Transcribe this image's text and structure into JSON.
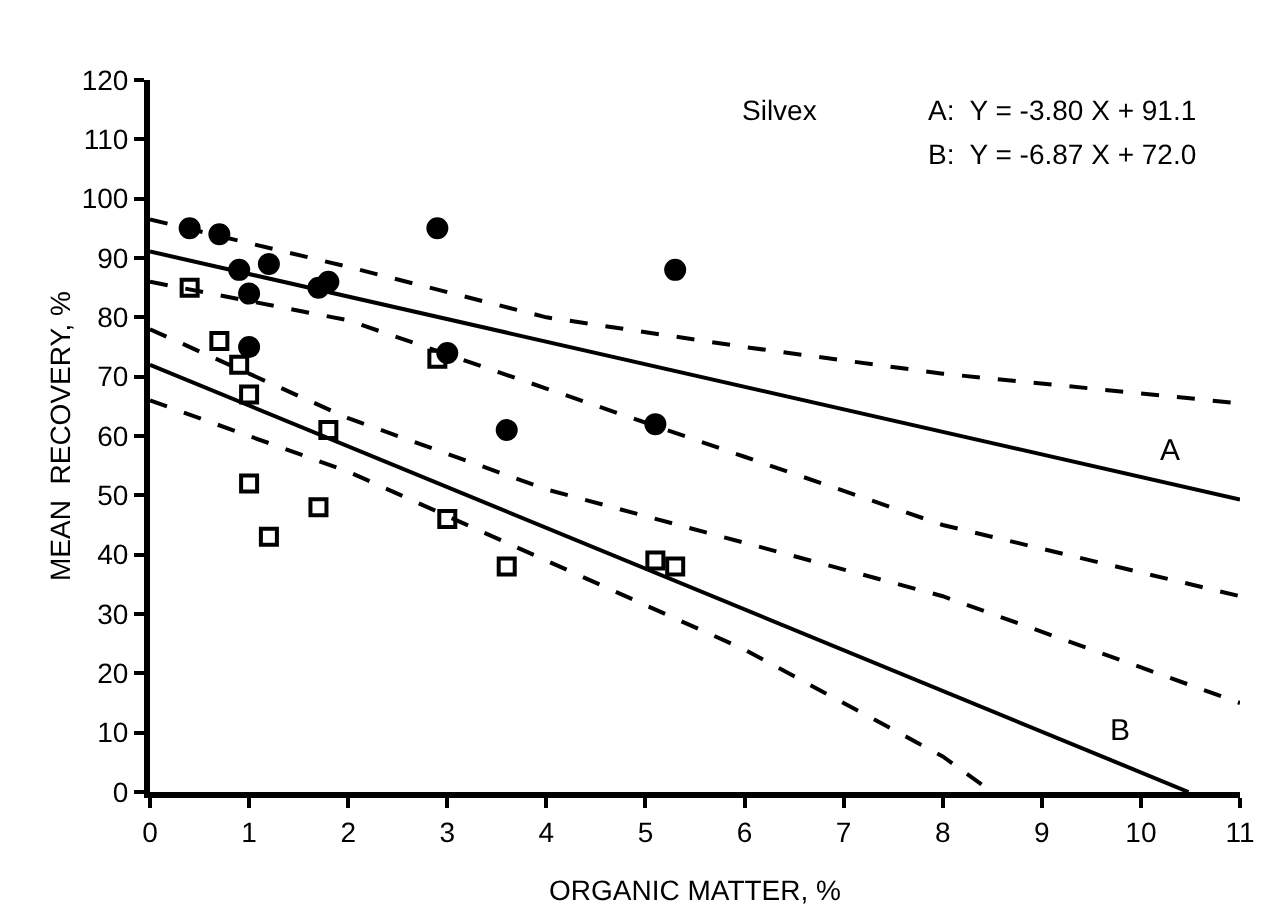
{
  "chart_data": {
    "type": "scatter",
    "xlabel": "ORGANIC MATTER, %",
    "ylabel": "MEAN  RECOVERY, %",
    "xlim": [
      0,
      11
    ],
    "xticks": [
      0,
      1,
      2,
      3,
      4,
      5,
      6,
      7,
      8,
      9,
      10,
      11
    ],
    "ylim": [
      0,
      120
    ],
    "yticks": [
      0,
      10,
      20,
      30,
      40,
      50,
      60,
      70,
      80,
      90,
      100,
      110,
      120
    ],
    "grid": false,
    "annotations": [
      "Silvex",
      "A:  Y = -3.80 X + 91.1",
      "B:  Y = -6.87 X + 72.0"
    ],
    "series": [
      {
        "marker": "circle",
        "color": "#000000",
        "x": [
          0.4,
          0.7,
          0.9,
          1.2,
          1.0,
          1.7,
          1.8,
          1.0,
          2.9,
          3.0,
          3.6,
          5.1,
          5.3
        ],
        "values": [
          95,
          94,
          88,
          89,
          84,
          85,
          86,
          75,
          95,
          74,
          61,
          62,
          88
        ]
      },
      {
        "marker": "square",
        "color": "#000000",
        "x": [
          0.4,
          0.7,
          0.9,
          1.0,
          1.0,
          1.2,
          1.7,
          1.8,
          2.9,
          3.0,
          3.6,
          5.1,
          5.3
        ],
        "values": [
          85,
          76,
          72,
          67,
          52,
          43,
          48,
          61,
          73,
          46,
          38,
          39,
          38
        ]
      },
      {
        "type": "line",
        "name": "A",
        "marker": "none",
        "line_style": "solid",
        "color": "#000000",
        "x": [
          0,
          11
        ],
        "values": [
          91.1,
          49.3
        ]
      },
      {
        "type": "line",
        "name": "B",
        "marker": "none",
        "line_style": "solid",
        "color": "#000000",
        "x": [
          0,
          10.48
        ],
        "values": [
          72,
          0
        ]
      },
      {
        "type": "line",
        "marker": "none",
        "line_style": "dashed",
        "color": "#000000",
        "x": [
          0,
          2,
          4,
          6,
          8,
          11
        ],
        "values": [
          96.5,
          88.5,
          80,
          75,
          70.5,
          65.5
        ]
      },
      {
        "type": "line",
        "marker": "none",
        "line_style": "dashed",
        "color": "#000000",
        "x": [
          0,
          2,
          4,
          6,
          8,
          11
        ],
        "values": [
          86,
          79.5,
          68,
          56.5,
          45,
          33
        ]
      },
      {
        "type": "line",
        "marker": "none",
        "line_style": "dashed",
        "color": "#000000",
        "x": [
          0,
          2,
          4,
          6,
          8,
          11
        ],
        "values": [
          78,
          63,
          51,
          42,
          33,
          15
        ]
      },
      {
        "type": "line",
        "marker": "none",
        "line_style": "dashed",
        "color": "#000000",
        "x": [
          0,
          2,
          4,
          6,
          8,
          8.5
        ],
        "values": [
          66,
          54,
          39,
          24,
          6,
          0
        ]
      }
    ]
  }
}
